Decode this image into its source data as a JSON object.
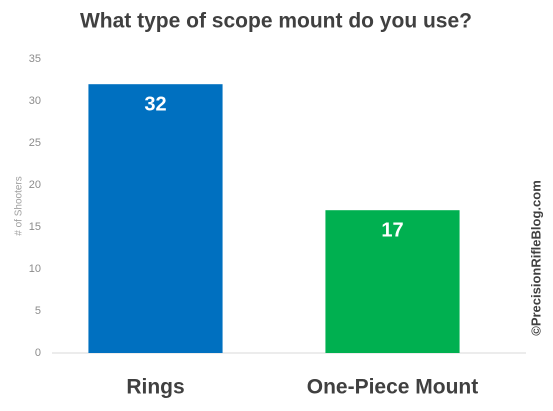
{
  "chart_data": {
    "type": "bar",
    "title": "What type of scope mount do you use?",
    "y_label": "# of Shooters",
    "categories": [
      "Rings",
      "One-Piece Mount"
    ],
    "values": [
      32,
      17
    ],
    "colors": [
      "#0070c0",
      "#00b050"
    ],
    "ylim": [
      0,
      35
    ],
    "yticks": [
      0,
      5,
      10,
      15,
      20,
      25,
      30,
      35
    ],
    "grid": false,
    "watermark": "©PrecisionRifleBlog.com"
  }
}
